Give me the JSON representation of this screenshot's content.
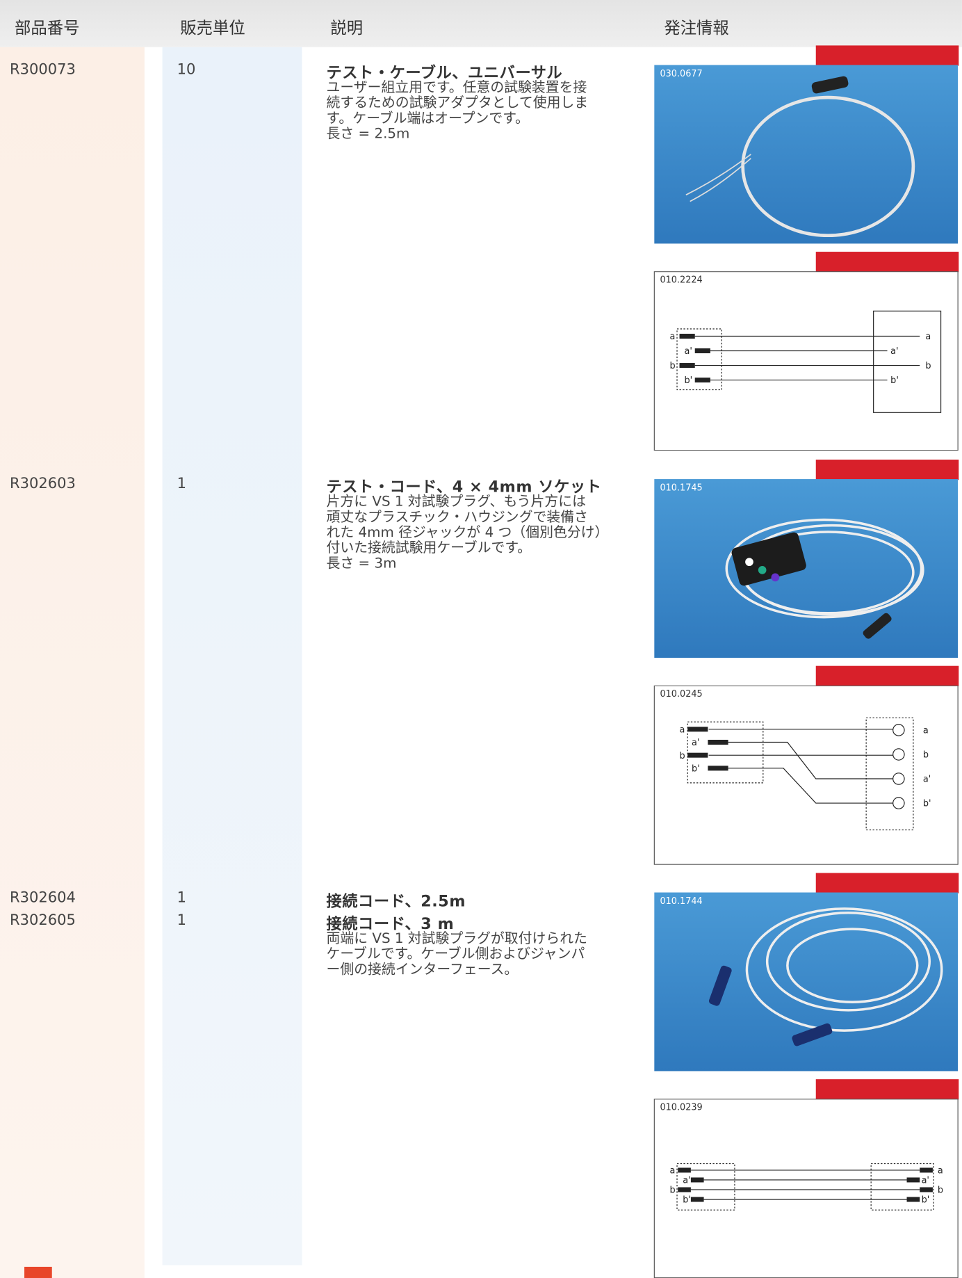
{
  "header": {
    "columns": [
      "部品番号",
      "販売単位",
      "説明",
      "発注情報"
    ]
  },
  "items": [
    {
      "parts": [
        {
          "number": "R300073",
          "unit": "10",
          "title": "テスト・ケーブル、ユニバーサル"
        }
      ],
      "description": [
        "ユーザー組立用です。任意の試験装置を接",
        "続するための試験アダプタとして使用しま",
        "す。ケーブル端はオープンです。",
        "長さ = 2.5m"
      ],
      "photo": {
        "code": "030.0677"
      },
      "diagram": {
        "code": "010.2224",
        "left_labels": [
          "a",
          "a'",
          "b",
          "b'"
        ],
        "right_labels": [
          "a",
          "a'",
          "b",
          "b'"
        ]
      }
    },
    {
      "parts": [
        {
          "number": "R302603",
          "unit": "1",
          "title": "テスト・コード、4 × 4mm ソケット"
        }
      ],
      "description": [
        "片方に VS  1 対試験プラグ、もう片方には",
        "頑丈なプラスチック・ハウジングで装備さ",
        "れた 4mm 径ジャックが 4 つ（個別色分け）",
        "付いた接続試験用ケーブルです。",
        "長さ = 3m"
      ],
      "photo": {
        "code": "010.1745"
      },
      "diagram": {
        "code": "010.0245",
        "left_labels": [
          "a",
          "a'",
          "b",
          "b'"
        ],
        "right_labels": [
          "a",
          "b",
          "a'",
          "b'"
        ]
      }
    },
    {
      "parts": [
        {
          "number": "R302604",
          "unit": "1",
          "title": "接続コード、2.5m"
        },
        {
          "number": "R302605",
          "unit": "1",
          "title": "接続コード、3 m"
        }
      ],
      "description": [
        "両端に VS  1 対試験プラグが取付けられた",
        "ケーブルです。ケーブル側およびジャンパ",
        "ー側の接続インターフェース。"
      ],
      "photo": {
        "code": "010.1744"
      },
      "diagram": {
        "code": "010.0239",
        "left_labels": [
          "a",
          "a'",
          "b",
          "b'"
        ],
        "right_labels": [
          "a",
          "a'",
          "b",
          "b'"
        ]
      }
    }
  ]
}
